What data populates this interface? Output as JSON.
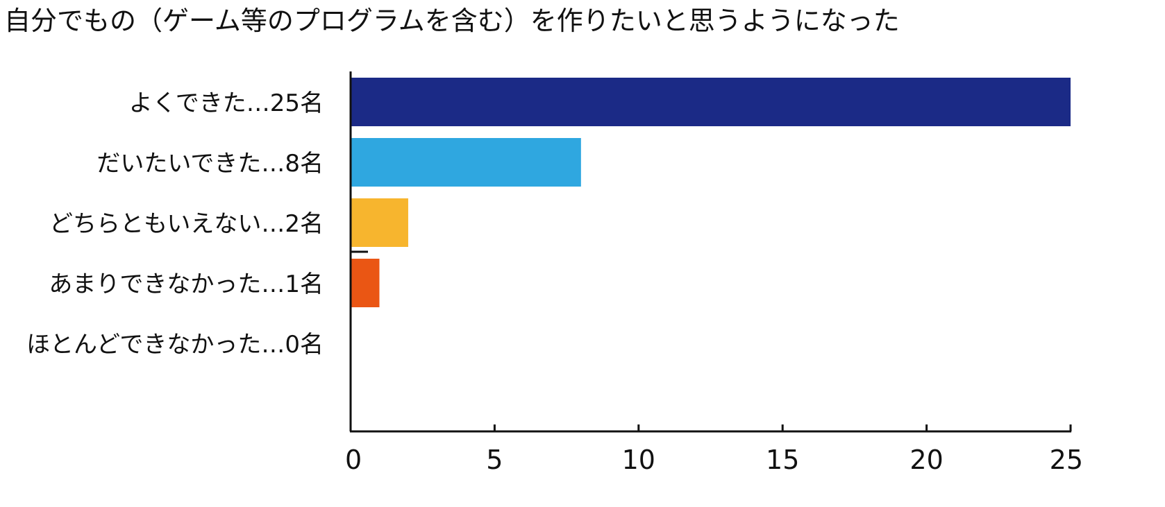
{
  "chart_data": {
    "type": "bar",
    "orientation": "horizontal",
    "title": "自分でもの（ゲーム等のプログラムを含む）を作りたいと思うようになった",
    "xlabel": "",
    "ylabel": "",
    "categories": [
      "よくできた…25名",
      "だいたいできた…8名",
      "どちらともいえない…2名",
      "あまりできなかった…1名",
      "ほとんどできなかった…0名"
    ],
    "values": [
      25,
      8,
      2,
      1,
      0
    ],
    "colors": [
      "#1b2a86",
      "#2fa7e0",
      "#f7b52e",
      "#ea5614",
      "#888888"
    ],
    "xlim": [
      0,
      25
    ],
    "xticks": [
      0,
      5,
      10,
      15,
      20,
      25
    ],
    "xtick_labels": [
      "0",
      "5",
      "10",
      "15",
      "20",
      "25"
    ],
    "grid": false,
    "legend": "none"
  }
}
